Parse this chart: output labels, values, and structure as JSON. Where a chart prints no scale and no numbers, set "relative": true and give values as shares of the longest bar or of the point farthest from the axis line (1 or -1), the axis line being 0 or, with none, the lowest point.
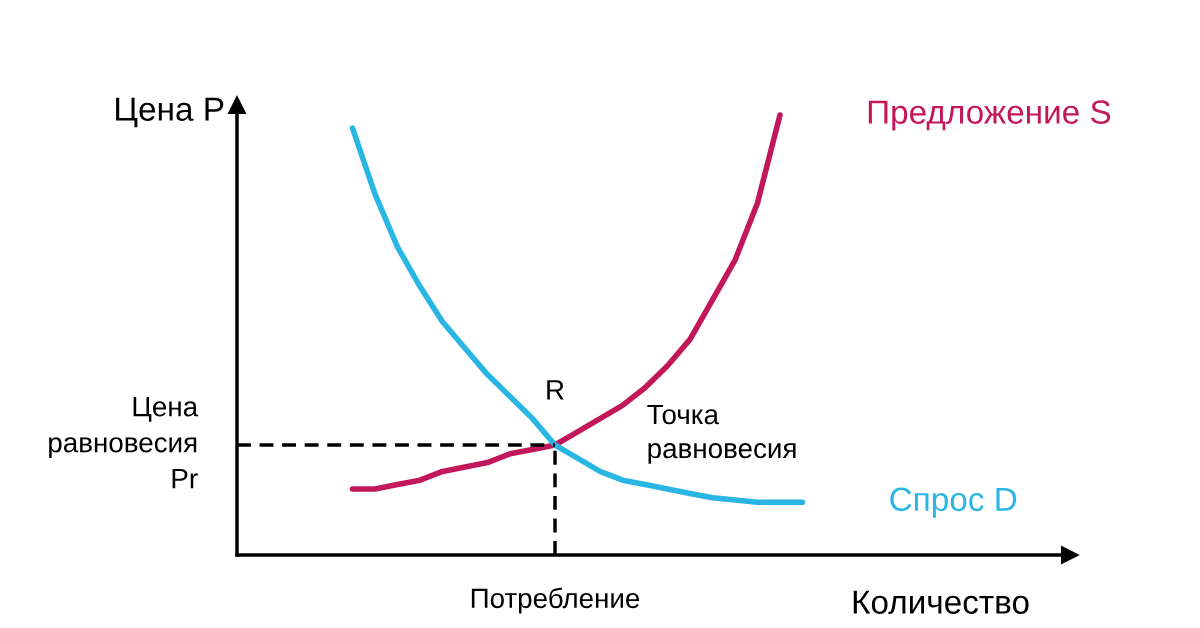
{
  "chart_data": {
    "type": "line",
    "relative": true,
    "xlabel": "Количество",
    "ylabel": "Цена P",
    "categories": [
      null,
      null,
      null,
      null,
      null,
      null,
      null,
      null,
      null,
      null,
      null,
      null,
      null,
      null,
      null,
      null,
      null,
      null,
      null,
      null,
      null,
      null
    ],
    "series": [
      {
        "name": "Предложение S",
        "color": "#c2185b",
        "values": [
          null,
          0.15,
          0.15,
          0.16,
          0.17,
          0.19,
          0.2,
          0.21,
          0.23,
          0.24,
          0.25,
          0.28,
          0.31,
          0.34,
          0.38,
          0.43,
          0.49,
          0.58,
          0.67,
          0.8,
          1.0,
          null
        ]
      },
      {
        "name": "Спрос D",
        "color": "#29b6e3",
        "values": [
          null,
          0.97,
          0.82,
          0.7,
          0.61,
          0.53,
          0.47,
          0.41,
          0.36,
          0.31,
          0.25,
          0.22,
          0.19,
          0.17,
          0.16,
          0.15,
          0.14,
          0.13,
          0.125,
          0.12,
          0.12,
          0.12
        ]
      }
    ],
    "ref_lines": [
      {
        "axis": "y",
        "value": 0.25,
        "label": "Цена\nравновесия\nPr",
        "color": "#000000",
        "line_style": "dashed"
      }
    ],
    "annotations": [
      "R",
      "Точка\nравновесия",
      "Потребление"
    ]
  }
}
